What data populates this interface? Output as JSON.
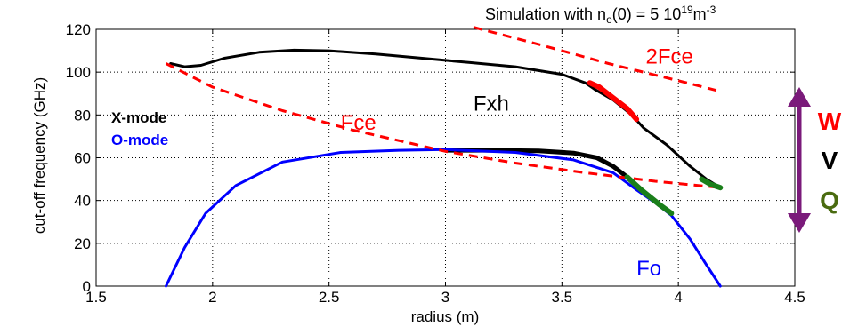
{
  "chart_data": {
    "type": "line",
    "title_prefix": "Simulation with n",
    "title_sub": "e",
    "title_mid": "(0) = 5 10",
    "title_sup1": "19",
    "title_unit": "m",
    "title_sup2": "-3",
    "xlabel": "radius (m)",
    "ylabel": "cut-off frequency (GHz)",
    "xlim": [
      1.5,
      4.5
    ],
    "ylim": [
      0,
      120
    ],
    "xticks": [
      1.5,
      2,
      2.5,
      3,
      3.5,
      4,
      4.5
    ],
    "xtick_labels": [
      "1.5",
      "2",
      "2.5",
      "3",
      "3.5",
      "4",
      "4.5"
    ],
    "yticks": [
      0,
      20,
      40,
      60,
      80,
      100,
      120
    ],
    "ytick_labels": [
      "0",
      "20",
      "40",
      "60",
      "80",
      "100",
      "120"
    ],
    "grid": true,
    "series": [
      {
        "name": "Fxh",
        "color": "#000000",
        "style": "solid",
        "points": [
          [
            1.82,
            104
          ],
          [
            1.88,
            102.5
          ],
          [
            1.95,
            103.2
          ],
          [
            2.05,
            106.5
          ],
          [
            2.2,
            109.3
          ],
          [
            2.35,
            110.3
          ],
          [
            2.5,
            110
          ],
          [
            2.7,
            108.5
          ],
          [
            2.9,
            106.5
          ],
          [
            3.1,
            104.5
          ],
          [
            3.3,
            102.5
          ],
          [
            3.5,
            99
          ],
          [
            3.6,
            95
          ],
          [
            3.64,
            92
          ],
          [
            3.72,
            87
          ],
          [
            3.8,
            80
          ],
          [
            3.85,
            74
          ],
          [
            3.95,
            66
          ],
          [
            4.05,
            56
          ],
          [
            4.12,
            50
          ],
          [
            4.15,
            48
          ],
          [
            4.18,
            46
          ]
        ]
      },
      {
        "name": "X-mode lower",
        "color": "#000000",
        "style": "solid",
        "points": [
          [
            3.0,
            63.5
          ],
          [
            3.2,
            63.5
          ],
          [
            3.4,
            63.2
          ],
          [
            3.55,
            62.2
          ],
          [
            3.65,
            60
          ],
          [
            3.72,
            56
          ],
          [
            3.78,
            51
          ],
          [
            3.84,
            45
          ],
          [
            3.92,
            38
          ],
          [
            3.97,
            34
          ]
        ]
      },
      {
        "name": "Fo",
        "color": "#0000ff",
        "style": "solid",
        "points": [
          [
            1.8,
            0
          ],
          [
            1.88,
            18
          ],
          [
            1.97,
            34
          ],
          [
            2.1,
            47
          ],
          [
            2.3,
            58
          ],
          [
            2.55,
            62.5
          ],
          [
            2.8,
            63.5
          ],
          [
            3.0,
            63.8
          ],
          [
            3.3,
            62.5
          ],
          [
            3.55,
            59
          ],
          [
            3.72,
            53
          ],
          [
            3.82,
            45
          ],
          [
            3.9,
            39
          ],
          [
            3.97,
            33
          ],
          [
            4.05,
            22
          ],
          [
            4.12,
            10
          ],
          [
            4.18,
            0
          ]
        ]
      },
      {
        "name": "Fce",
        "color": "#ff0000",
        "style": "dashed",
        "points": [
          [
            1.8,
            104
          ],
          [
            2.0,
            93
          ],
          [
            2.3,
            82
          ],
          [
            2.6,
            73
          ],
          [
            3.0,
            63
          ],
          [
            3.3,
            57.5
          ],
          [
            3.6,
            53
          ],
          [
            3.9,
            49
          ],
          [
            4.18,
            46
          ]
        ]
      },
      {
        "name": "2Fce",
        "color": "#ff0000",
        "style": "dashed",
        "points": [
          [
            3.12,
            121
          ],
          [
            3.4,
            113
          ],
          [
            3.7,
            104
          ],
          [
            4.0,
            96
          ],
          [
            4.18,
            91
          ]
        ]
      }
    ],
    "highlights": [
      {
        "band": "W",
        "color": "#ff0000",
        "points": [
          [
            3.62,
            95
          ],
          [
            3.66,
            93
          ],
          [
            3.72,
            88
          ],
          [
            3.78,
            83
          ],
          [
            3.82,
            78
          ]
        ]
      },
      {
        "band": "Q",
        "color": "#1a7f1a",
        "points": [
          [
            3.78,
            51
          ],
          [
            3.84,
            45
          ],
          [
            3.92,
            38
          ],
          [
            3.97,
            34
          ]
        ]
      },
      {
        "band": "Q",
        "color": "#1a7f1a",
        "points": [
          [
            4.1,
            50
          ],
          [
            4.14,
            47.5
          ],
          [
            4.18,
            46
          ]
        ]
      }
    ],
    "curve_labels": [
      {
        "text": "Fxh",
        "x": 3.12,
        "y": 82,
        "color": "#000000"
      },
      {
        "text": "Fce",
        "x": 2.55,
        "y": 73,
        "color": "#ff0000"
      },
      {
        "text": "2Fce",
        "x": 3.86,
        "y": 104,
        "color": "#ff0000"
      },
      {
        "text": "Fo",
        "x": 3.82,
        "y": 5,
        "color": "#0000ff"
      }
    ],
    "legend": [
      {
        "text": "X-mode",
        "color": "#000000"
      },
      {
        "text": "O-mode",
        "color": "#0000ff"
      }
    ],
    "bands": [
      {
        "text": "W",
        "color": "#ff0000"
      },
      {
        "text": "V",
        "color": "#000000"
      },
      {
        "text": "Q",
        "color": "#4a6b10"
      }
    ],
    "band_arrow_color": "#7a1a7a"
  }
}
